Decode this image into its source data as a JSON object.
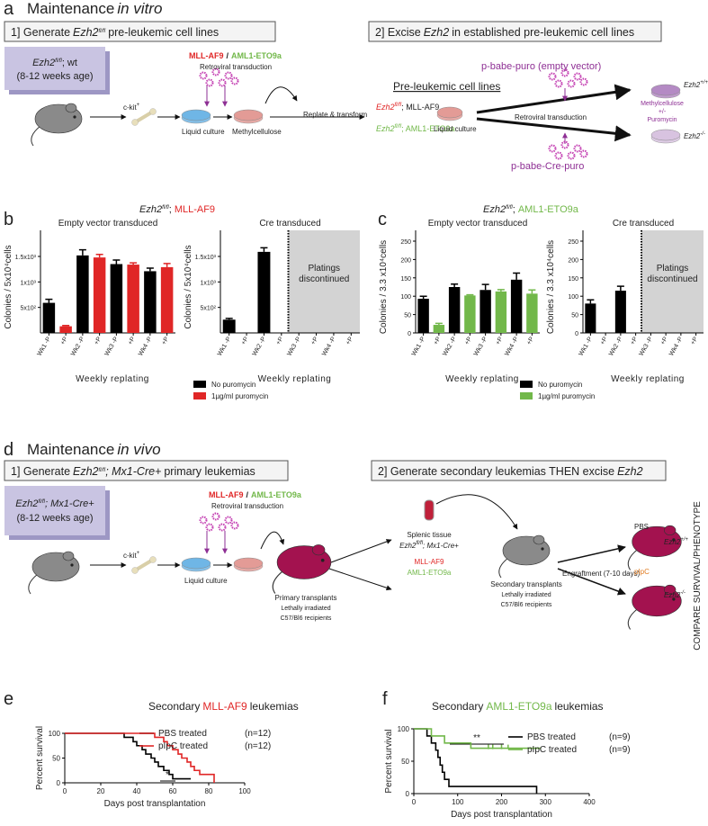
{
  "panels": {
    "a": {
      "letter": "a",
      "heading": "Maintenance",
      "heading_italic": "in vitro",
      "step1": {
        "prefix": "1] Generate",
        "gene": "Ezh2",
        "sup": "fl/fl",
        "suffix": "pre-leukemic cell lines"
      },
      "step2": {
        "prefix": "2] Excise",
        "gene": "Ezh2",
        "suffix": "in established pre-leukemic cell lines"
      },
      "donor": {
        "gene": "Ezh2",
        "sup": "fl/fl",
        "suffix": "; wt",
        "age": "(8-12 weeks age)"
      },
      "ckit": "c-kit",
      "ckit_sup": "+",
      "virus": {
        "red": "MLL-AF9",
        "sep": "/",
        "green": "AML1-ETO9a",
        "method": "Retroviral transduction"
      },
      "liquid": "Liquid culture",
      "methyl": "Methylcellulose",
      "replate": "Replate & transform",
      "lines_title": "Pre-leukemic cell lines",
      "line1": {
        "gene": "Ezh2",
        "sup": "fl/fl",
        "suffix": "; MLL-AF9"
      },
      "line2": {
        "gene": "Ezh2",
        "sup": "fl/fl",
        "suffix": "; AML1-ETO9a"
      },
      "liquid2": "Liquid culture",
      "empty": "p-babe-puro (empty vector)",
      "method2": "Retroviral transduction",
      "selection": [
        "Methylcellulose",
        "+/-",
        "Puromycin"
      ],
      "wt": {
        "gene": "Ezh2",
        "sup": "+/+"
      },
      "ko": {
        "gene": "Ezh2",
        "sup": "-/-"
      },
      "cre": "p-babe-Cre-puro"
    },
    "b": {
      "letter": "b",
      "gene": "Ezh2",
      "sup": "fl/fl",
      "suffix": ";",
      "model": "MLL-AF9"
    },
    "c": {
      "letter": "c",
      "gene": "Ezh2",
      "sup": "fl/fl",
      "suffix": ";",
      "model": "AML1-ETO9a"
    },
    "d": {
      "letter": "d",
      "heading": "Maintenance",
      "heading_italic": "in vivo",
      "step1": {
        "prefix": "1] Generate",
        "gene": "Ezh2",
        "sup": "fl/fl",
        "suffix": "; Mx1-Cre+",
        "rest": "primary leukemias"
      },
      "step2": {
        "prefix": "2] Generate secondary leukemias THEN excise",
        "gene": "Ezh2"
      },
      "donor": {
        "gene": "Ezh2",
        "sup": "fl/fl",
        "suffix": "; Mx1-Cre+",
        "age": "(8-12 weeks age)"
      },
      "ckit": "c-kit",
      "ckit_sup": "+",
      "virus": {
        "red": "MLL-AF9",
        "sep": "/",
        "green": "AML1-ETO9a",
        "method": "Retroviral transduction"
      },
      "liquid": "Liquid culture",
      "primary": [
        "Primary transplants",
        "Lethally irradiated",
        "C57/Bl6 recipients"
      ],
      "splenic": "Splenic tissue",
      "donor2": {
        "gene": "Ezh2",
        "sup": "fl/fl",
        "suffix": "; Mx1-Cre+"
      },
      "model_red": "MLL-AF9",
      "model_green": "AML1-ETO9a",
      "secondary": [
        "Secondary transplants",
        "Lethally irradiated",
        "C57/Bl6 recipients"
      ],
      "engraft": "Engraftment (7-10 days)",
      "pbs": "PBS",
      "pipc": "pIpC",
      "wt": {
        "gene": "Ezh2",
        "sup": "+/+"
      },
      "ko": {
        "gene": "Ezh2",
        "sup": "-/-"
      },
      "compare": "COMPARE SURVIVAL/PHENOTYPE"
    },
    "e": {
      "letter": "e"
    },
    "f": {
      "letter": "f"
    }
  },
  "chart_data": [
    {
      "type": "bar",
      "subtitle": "Empty vector transduced",
      "ylabel": "Colonies / 5x10⁴cells",
      "xlabel": "Weekly replating",
      "categories": [
        "Wk1 -P",
        "+P",
        "Wk2 -P",
        "+P",
        "Wk3 -P",
        "+P",
        "Wk4 -P",
        "+P"
      ],
      "ylim": [
        0,
        1800
      ],
      "yticks": [
        {
          "value": 500,
          "label": "5x10²"
        },
        {
          "value": 1000,
          "label": "1x10³"
        },
        {
          "value": 1500,
          "label": "1.5x10³"
        }
      ],
      "series": [
        {
          "name": "No puromycin",
          "color": "#000000",
          "values": [
            590,
            null,
            1520,
            null,
            1350,
            null,
            1210,
            null
          ],
          "errors": [
            70,
            null,
            110,
            null,
            80,
            null,
            60,
            null
          ]
        },
        {
          "name": "1µg/ml puromycin",
          "color": "#e02626",
          "values": [
            null,
            130,
            null,
            1480,
            null,
            1340,
            null,
            1290
          ],
          "errors": [
            null,
            15,
            null,
            60,
            null,
            35,
            null,
            70
          ]
        }
      ]
    },
    {
      "type": "bar",
      "subtitle": "Cre transduced",
      "ylabel": "Colonies / 5x10⁴cells",
      "xlabel": "Weekly replating",
      "annotation": [
        "Platings",
        "discontinued"
      ],
      "categories": [
        "Wk1 -P",
        "+P",
        "Wk2 -P",
        "+P",
        "Wk3 -P",
        "+P",
        "Wk4 -P",
        "+P"
      ],
      "ylim": [
        0,
        1800
      ],
      "yticks": [
        {
          "value": 500,
          "label": "5x10²"
        },
        {
          "value": 1000,
          "label": "1x10³"
        },
        {
          "value": 1500,
          "label": "1.5x10³"
        }
      ],
      "series": [
        {
          "color": "#000000",
          "values": [
            260,
            0,
            1590,
            0,
            null,
            null,
            null,
            null
          ],
          "errors": [
            25,
            null,
            80,
            null,
            null,
            null,
            null,
            null
          ]
        }
      ]
    },
    {
      "type": "bar",
      "subtitle": "Empty vector transduced",
      "ylabel": "Colonies / 3.3 x10⁴cells",
      "xlabel": "Weekly replating",
      "categories": [
        "Wk1 -P",
        "+P",
        "Wk2 -P",
        "+P",
        "Wk3 -P",
        "+P",
        "Wk4 -P",
        "+P"
      ],
      "ylim": [
        0,
        250
      ],
      "yticks": [
        0,
        50,
        100,
        150,
        200,
        250
      ],
      "series": [
        {
          "name": "No puromycin",
          "color": "#000000",
          "values": [
            93,
            null,
            125,
            null,
            117,
            null,
            145,
            null
          ],
          "errors": [
            7,
            null,
            8,
            null,
            15,
            null,
            18,
            null
          ]
        },
        {
          "name": "1µg/ml puromycin",
          "color": "#72b84a",
          "values": [
            null,
            22,
            null,
            102,
            null,
            113,
            null,
            107
          ],
          "errors": [
            null,
            4,
            null,
            2,
            null,
            5,
            null,
            10
          ]
        }
      ]
    },
    {
      "type": "bar",
      "subtitle": "Cre transduced",
      "ylabel": "Colonies / 3.3 x10⁴cells",
      "xlabel": "Weekly replating",
      "annotation": [
        "Platings",
        "discontinued"
      ],
      "categories": [
        "Wk1 -P",
        "+P",
        "Wk2 -P",
        "+P",
        "Wk3 -P",
        "+P",
        "Wk4 -P",
        "+P"
      ],
      "ylim": [
        0,
        250
      ],
      "yticks": [
        0,
        50,
        100,
        150,
        200,
        250
      ],
      "series": [
        {
          "color": "#000000",
          "values": [
            80,
            0,
            115,
            0,
            null,
            null,
            null,
            null
          ],
          "errors": [
            10,
            null,
            12,
            null,
            null,
            null,
            null,
            null
          ]
        }
      ]
    },
    {
      "type": "survival",
      "title": "Secondary",
      "title_highlight": "MLL-AF9",
      "title_end": "leukemias",
      "highlight_color": "#e02626",
      "xlabel": "Days post transplantation",
      "ylabel": "Percent survival",
      "annotation": "*",
      "xlim": [
        0,
        100
      ],
      "xticks": [
        0,
        20,
        40,
        60,
        80,
        100
      ],
      "ylim": [
        0,
        100
      ],
      "yticks": [
        0,
        50,
        100
      ],
      "series": [
        {
          "name": "PBS treated",
          "note": "(n=12)",
          "color": "#000000",
          "x": [
            0,
            33,
            38,
            40,
            43,
            45,
            48,
            50,
            52,
            55,
            58,
            60,
            70
          ],
          "values": [
            100,
            92,
            83,
            75,
            67,
            58,
            50,
            42,
            33,
            25,
            17,
            8,
            8
          ]
        },
        {
          "name": "pIpC treated",
          "note": "(n=12)",
          "color": "#e02626",
          "x": [
            0,
            50,
            55,
            57,
            60,
            63,
            65,
            68,
            70,
            72,
            75,
            83
          ],
          "values": [
            100,
            92,
            83,
            75,
            67,
            58,
            50,
            42,
            33,
            25,
            17,
            0
          ]
        }
      ]
    },
    {
      "type": "survival",
      "title": "Secondary",
      "title_highlight": "AML1-ETO9a",
      "title_end": "leukemias",
      "highlight_color": "#72b84a",
      "xlabel": "Days post transplantation",
      "ylabel": "Percent survival",
      "annotation": "**",
      "xlim": [
        0,
        400
      ],
      "xticks": [
        0,
        100,
        200,
        300,
        400
      ],
      "ylim": [
        0,
        100
      ],
      "yticks": [
        0,
        50,
        100
      ],
      "series": [
        {
          "name": "PBS treated",
          "note": "(n=9)",
          "color": "#000000",
          "x": [
            0,
            30,
            40,
            50,
            55,
            60,
            65,
            70,
            80,
            280
          ],
          "values": [
            100,
            89,
            78,
            67,
            56,
            44,
            33,
            22,
            11,
            0
          ]
        },
        {
          "name": "pIpC treated",
          "note": "(n=9)",
          "color": "#72b84a",
          "x": [
            0,
            40,
            70,
            130,
            290
          ],
          "values": [
            100,
            89,
            78,
            70,
            70
          ],
          "censored": [
            170,
            180,
            200,
            215
          ]
        }
      ]
    }
  ]
}
